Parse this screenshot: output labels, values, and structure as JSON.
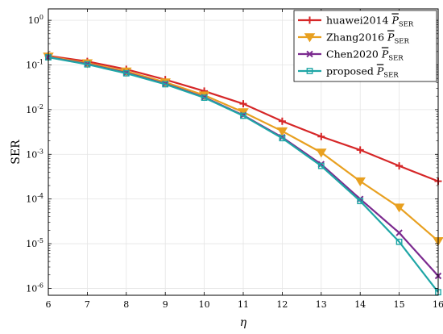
{
  "chart_data": {
    "type": "line",
    "xlabel": "η",
    "ylabel": "SER",
    "yscale": "log",
    "xlim": [
      6,
      16
    ],
    "ylim": [
      7e-07,
      1.8
    ],
    "grid": true,
    "legend_position": "top-right",
    "x": [
      6,
      7,
      8,
      9,
      10,
      11,
      12,
      13,
      14,
      15,
      16
    ],
    "x_ticks": [
      "6",
      "7",
      "8",
      "9",
      "10",
      "11",
      "12",
      "13",
      "14",
      "15",
      "16"
    ],
    "y_ticks": [
      {
        "value": 1,
        "base": "10",
        "exp": "0"
      },
      {
        "value": 0.1,
        "base": "10",
        "exp": "-1"
      },
      {
        "value": 0.01,
        "base": "10",
        "exp": "-2"
      },
      {
        "value": 0.001,
        "base": "10",
        "exp": "-3"
      },
      {
        "value": 0.0001,
        "base": "10",
        "exp": "-4"
      },
      {
        "value": 1e-05,
        "base": "10",
        "exp": "-5"
      },
      {
        "value": 1e-06,
        "base": "10",
        "exp": "-6"
      }
    ],
    "series": [
      {
        "name": "huawei2014",
        "legend_symbol": "P",
        "legend_subscript": "SER",
        "color": "#d62728",
        "marker": "plus",
        "values": [
          0.16,
          0.12,
          0.08,
          0.047,
          0.026,
          0.0135,
          0.0055,
          0.0025,
          0.00125,
          0.00055,
          0.00025
        ]
      },
      {
        "name": "Zhang2016",
        "legend_symbol": "P",
        "legend_subscript": "SER",
        "color": "#e8a020",
        "marker": "triangle-down",
        "values": [
          0.155,
          0.11,
          0.072,
          0.041,
          0.021,
          0.0088,
          0.0033,
          0.0011,
          0.00025,
          6.5e-05,
          1.15e-05
        ]
      },
      {
        "name": "Chen2020",
        "legend_symbol": "P",
        "legend_subscript": "SER",
        "color": "#7b2a8f",
        "marker": "x",
        "values": [
          0.15,
          0.105,
          0.067,
          0.038,
          0.019,
          0.0075,
          0.0024,
          0.0006,
          0.0001,
          1.75e-05,
          1.9e-06
        ]
      },
      {
        "name": "proposed",
        "legend_symbol": "P",
        "legend_subscript": "SER",
        "color": "#1fa6a6",
        "marker": "square",
        "values": [
          0.148,
          0.103,
          0.065,
          0.037,
          0.0185,
          0.0073,
          0.0023,
          0.00055,
          9e-05,
          1.1e-05,
          8.2e-07
        ]
      }
    ]
  }
}
